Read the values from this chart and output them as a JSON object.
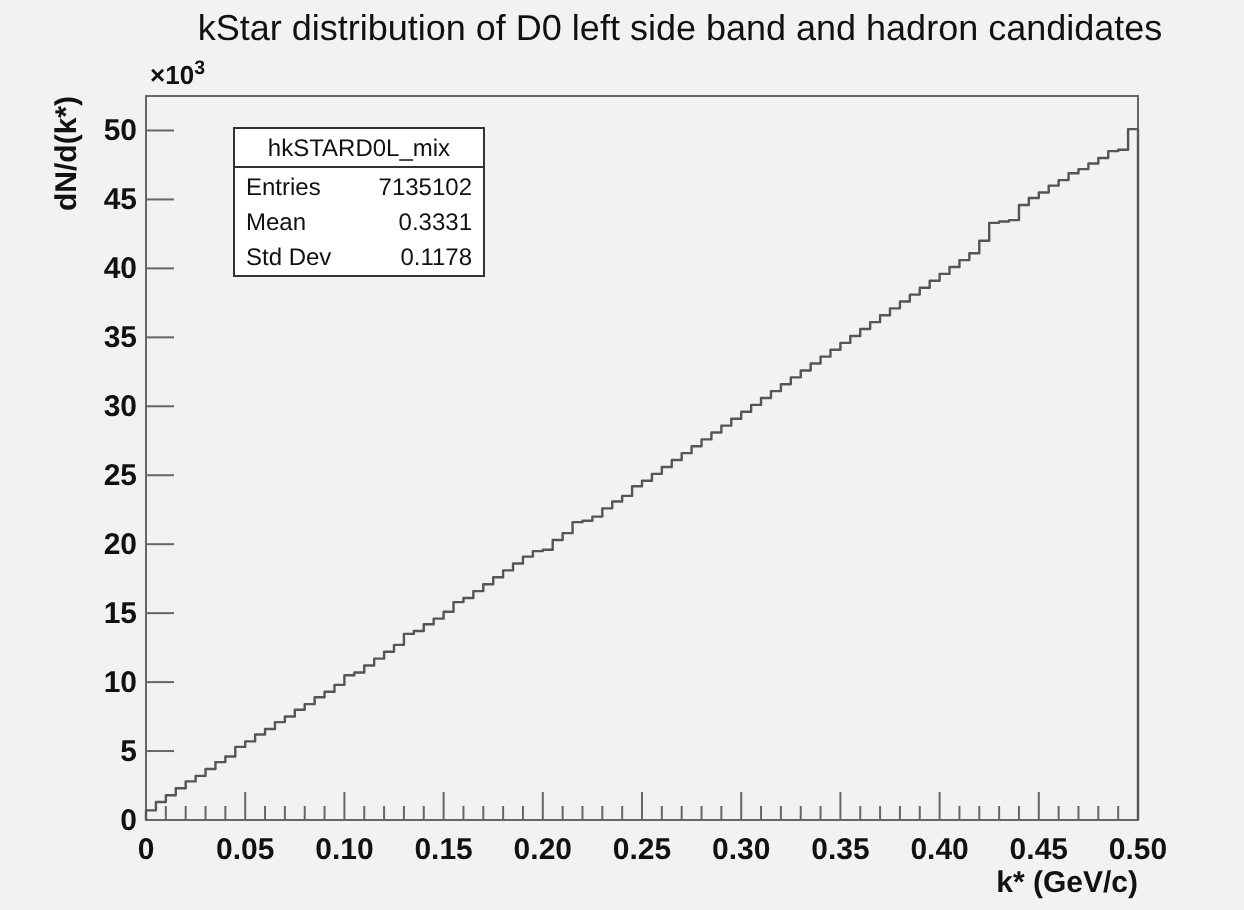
{
  "chart_data": {
    "type": "histogram",
    "title": "kStar distribution of D0 left side band and hadron candidates",
    "xlabel": "k* (GeV/c)",
    "ylabel": "dN/d(k*)",
    "annotations": [
      "×10$^{3}$",
      "hkSTARD0L_mix",
      "Entries",
      "7135102",
      "Mean",
      "0.3331",
      "Std Dev",
      "0.1178"
    ],
    "bins": [
      0,
      0.005,
      0.01,
      0.015,
      0.02,
      0.025,
      0.03,
      0.035,
      0.04,
      0.045,
      0.05,
      0.055,
      0.06,
      0.065,
      0.07,
      0.075,
      0.08,
      0.085,
      0.09,
      0.095,
      0.1,
      0.105,
      0.11,
      0.115,
      0.12,
      0.125,
      0.13,
      0.135,
      0.14,
      0.145,
      0.15,
      0.155,
      0.16,
      0.165,
      0.17,
      0.175,
      0.18,
      0.185,
      0.19,
      0.195,
      0.2,
      0.205,
      0.21,
      0.215,
      0.22,
      0.225,
      0.23,
      0.235,
      0.24,
      0.245,
      0.25,
      0.255,
      0.26,
      0.265,
      0.27,
      0.275,
      0.28,
      0.285,
      0.29,
      0.295,
      0.3,
      0.305,
      0.31,
      0.315,
      0.32,
      0.325,
      0.33,
      0.335,
      0.34,
      0.345,
      0.35,
      0.355,
      0.36,
      0.365,
      0.37,
      0.375,
      0.38,
      0.385,
      0.39,
      0.395,
      0.4,
      0.405,
      0.41,
      0.415,
      0.42,
      0.425,
      0.43,
      0.435,
      0.44,
      0.445,
      0.45,
      0.455,
      0.46,
      0.465,
      0.47,
      0.475,
      0.48,
      0.485,
      0.49,
      0.495,
      0.5
    ],
    "values": [
      0.7,
      1.3,
      1.8,
      2.3,
      2.8,
      3.2,
      3.7,
      4.2,
      4.6,
      5.3,
      5.7,
      6.2,
      6.6,
      7.1,
      7.5,
      8.0,
      8.4,
      8.9,
      9.3,
      9.8,
      10.5,
      10.7,
      11.2,
      11.7,
      12.2,
      12.7,
      13.5,
      13.7,
      14.2,
      14.6,
      15.1,
      15.8,
      16.1,
      16.6,
      17.1,
      17.6,
      18.1,
      18.6,
      19.1,
      19.5,
      19.6,
      20.3,
      20.8,
      21.6,
      21.7,
      22.0,
      22.6,
      23.1,
      23.5,
      24.2,
      24.6,
      25.1,
      25.6,
      26.1,
      26.6,
      27.1,
      27.6,
      28.1,
      28.6,
      29.1,
      29.6,
      30.1,
      30.6,
      31.1,
      31.6,
      32.1,
      32.6,
      33.1,
      33.6,
      34.1,
      34.6,
      35.1,
      35.6,
      36.1,
      36.6,
      37.1,
      37.6,
      38.1,
      38.6,
      39.1,
      39.6,
      40.1,
      40.6,
      41.1,
      42.0,
      43.3,
      43.4,
      43.5,
      44.6,
      45.1,
      45.5,
      46.0,
      46.4,
      46.9,
      47.2,
      47.6,
      48.0,
      48.5,
      48.6,
      50.1
    ],
    "color": "#555555",
    "xlim": [
      0,
      0.5
    ],
    "ylim": [
      0,
      52.5
    ],
    "xticks": [
      0,
      {
        "value": 0.01,
        "label": null
      },
      {
        "value": 0.02,
        "label": null
      },
      {
        "value": 0.03,
        "label": null
      },
      {
        "value": 0.04,
        "label": null
      },
      {
        "value": 0.05,
        "label": "0.05"
      },
      {
        "value": 0.06,
        "label": null
      },
      {
        "value": 0.07,
        "label": null
      },
      {
        "value": 0.08,
        "label": null
      },
      {
        "value": 0.09,
        "label": null
      },
      {
        "value": 0.1,
        "label": "0.10"
      },
      {
        "value": 0.11,
        "label": null
      },
      {
        "value": 0.12,
        "label": null
      },
      {
        "value": 0.13,
        "label": null
      },
      {
        "value": 0.14,
        "label": null
      },
      {
        "value": 0.15,
        "label": "0.15"
      },
      {
        "value": 0.16,
        "label": null
      },
      {
        "value": 0.17,
        "label": null
      },
      {
        "value": 0.18,
        "label": null
      },
      {
        "value": 0.19,
        "label": null
      },
      {
        "value": 0.2,
        "label": "0.20"
      },
      {
        "value": 0.21,
        "label": null
      },
      {
        "value": 0.22,
        "label": null
      },
      {
        "value": 0.23,
        "label": null
      },
      {
        "value": 0.24,
        "label": null
      },
      {
        "value": 0.25,
        "label": "0.25"
      },
      {
        "value": 0.26,
        "label": null
      },
      {
        "value": 0.27,
        "label": null
      },
      {
        "value": 0.28,
        "label": null
      },
      {
        "value": 0.29,
        "label": null
      },
      {
        "value": 0.3,
        "label": "0.30"
      },
      {
        "value": 0.31,
        "label": null
      },
      {
        "value": 0.32,
        "label": null
      },
      {
        "value": 0.33,
        "label": null
      },
      {
        "value": 0.34,
        "label": null
      },
      {
        "value": 0.35,
        "label": "0.35"
      },
      {
        "value": 0.36,
        "label": null
      },
      {
        "value": 0.37,
        "label": null
      },
      {
        "value": 0.38,
        "label": null
      },
      {
        "value": 0.39,
        "label": null
      },
      {
        "value": 0.4,
        "label": "0.40"
      },
      {
        "value": 0.41,
        "label": null
      },
      {
        "value": 0.42,
        "label": null
      },
      {
        "value": 0.43,
        "label": null
      },
      {
        "value": 0.44,
        "label": null
      },
      {
        "value": 0.45,
        "label": "0.45"
      },
      {
        "value": 0.46,
        "label": null
      },
      {
        "value": 0.47,
        "label": null
      },
      {
        "value": 0.48,
        "label": null
      },
      {
        "value": 0.49,
        "label": null
      },
      {
        "value": 0.5,
        "label": "0.50"
      }
    ],
    "yticks": [
      0,
      5,
      10,
      15,
      20,
      25,
      30,
      35,
      40,
      45,
      50
    ]
  }
}
